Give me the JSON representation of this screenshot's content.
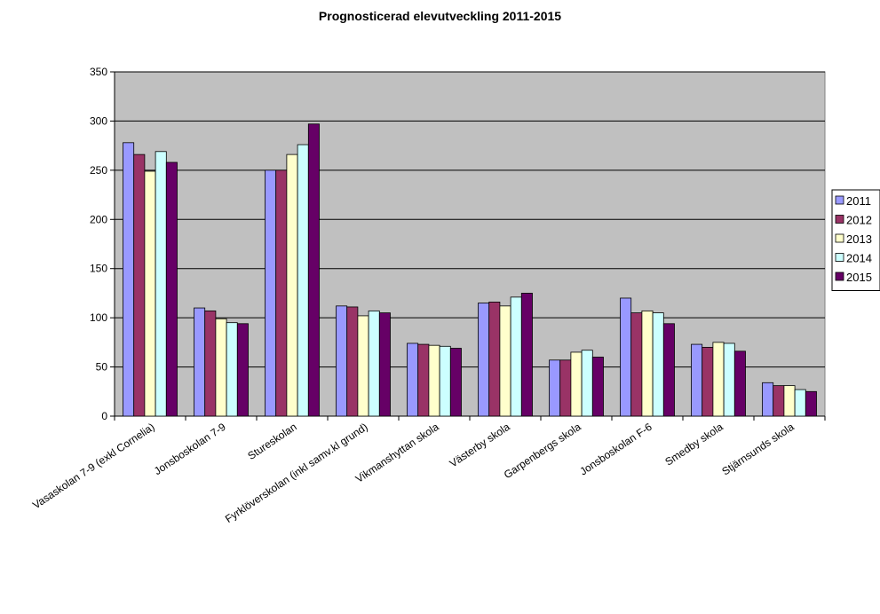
{
  "chart_data": {
    "type": "bar",
    "title": "Prognosticerad elevutveckling 2011-2015",
    "xlabel": "",
    "ylabel": "",
    "ylim": [
      0,
      350
    ],
    "yticks": [
      0,
      50,
      100,
      150,
      200,
      250,
      300,
      350
    ],
    "grid": true,
    "legend_position": "right",
    "plot_background": "#c0c0c0",
    "categories": [
      "Vasaskolan 7-9 (exkl Cornelia)",
      "Jonsboskolan 7-9",
      "Stureskolan",
      "Fyrklöverskolan (inkl samv.kl grund)",
      "Vikmanshyttan skola",
      "Västerby skola",
      "Garpenbergs skola",
      "Jonsboskolan F-6",
      "Smedby skola",
      "Stjärnsunds skola"
    ],
    "series": [
      {
        "name": "2011",
        "color": "#9999ff",
        "values": [
          278,
          110,
          250,
          112,
          74,
          115,
          57,
          120,
          73,
          34
        ]
      },
      {
        "name": "2012",
        "color": "#993366",
        "values": [
          266,
          107,
          250,
          111,
          73,
          116,
          57,
          105,
          70,
          31
        ]
      },
      {
        "name": "2013",
        "color": "#ffffcc",
        "values": [
          249,
          99,
          266,
          102,
          72,
          112,
          65,
          107,
          75,
          31
        ]
      },
      {
        "name": "2014",
        "color": "#ccffff",
        "values": [
          269,
          95,
          276,
          107,
          71,
          121,
          67,
          105,
          74,
          27
        ]
      },
      {
        "name": "2015",
        "color": "#660066",
        "values": [
          258,
          94,
          297,
          105,
          69,
          125,
          60,
          94,
          66,
          25
        ]
      }
    ]
  }
}
